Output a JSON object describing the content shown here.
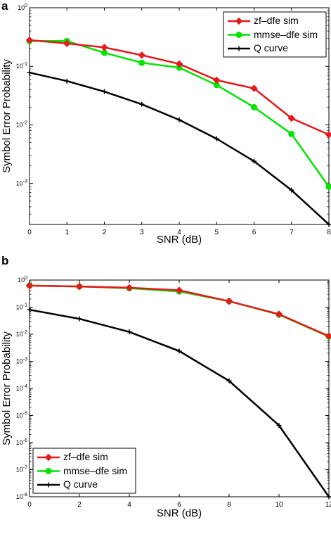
{
  "figure": {
    "panels": [
      {
        "panel_label": "a"
      },
      {
        "panel_label": "b"
      }
    ]
  },
  "chart_data": [
    {
      "type": "line",
      "panel": "a",
      "title": "",
      "xlabel": "SNR (dB)",
      "ylabel": "Symbol Error Probability",
      "xscale": "linear",
      "yscale": "log",
      "xlim": [
        0,
        8
      ],
      "ylim_exp": [
        -3.7,
        0
      ],
      "xticks": [
        0,
        1,
        2,
        3,
        4,
        5,
        6,
        7,
        8
      ],
      "yticks": [
        {
          "exp": 0,
          "base": "10",
          "sup": "0"
        },
        {
          "exp": -1,
          "base": "10",
          "sup": "-1"
        },
        {
          "exp": -2,
          "base": "10",
          "sup": "-2"
        },
        {
          "exp": -3,
          "base": "10",
          "sup": "-3"
        }
      ],
      "grid": false,
      "legend_position": "top-right",
      "series": [
        {
          "name": "zf–dfe sim",
          "color": "#e41a1c",
          "marker": "diamond",
          "x": [
            0,
            1,
            2,
            3,
            4,
            5,
            6,
            7,
            8
          ],
          "y": [
            0.28,
            0.245,
            0.21,
            0.155,
            0.11,
            0.058,
            0.042,
            0.013,
            0.0068
          ]
        },
        {
          "name": "mmse–dfe sim",
          "color": "#00e400",
          "marker": "circle",
          "x": [
            0,
            1,
            2,
            3,
            4,
            5,
            6,
            7,
            8
          ],
          "y": [
            0.27,
            0.27,
            0.17,
            0.115,
            0.095,
            0.048,
            0.02,
            0.007,
            0.00088
          ]
        },
        {
          "name": "Q curve",
          "color": "#000000",
          "marker": "plus",
          "x": [
            0,
            1,
            2,
            3,
            4,
            5,
            6,
            7,
            8
          ],
          "y": [
            0.078,
            0.056,
            0.037,
            0.0225,
            0.0122,
            0.0058,
            0.0024,
            0.00077,
            0.0002
          ]
        }
      ]
    },
    {
      "type": "line",
      "panel": "b",
      "title": "",
      "xlabel": "SNR (dB)",
      "ylabel": "Symbol Error Probability",
      "xscale": "linear",
      "yscale": "log",
      "xlim": [
        0,
        12
      ],
      "ylim_exp": [
        -8,
        0
      ],
      "xticks": [
        0,
        2,
        4,
        6,
        8,
        10,
        12
      ],
      "yticks": [
        {
          "exp": 0,
          "base": "10",
          "sup": "0"
        },
        {
          "exp": -1,
          "base": "10",
          "sup": "-1"
        },
        {
          "exp": -2,
          "base": "10",
          "sup": "-2"
        },
        {
          "exp": -3,
          "base": "10",
          "sup": "-3"
        },
        {
          "exp": -4,
          "base": "10",
          "sup": "-4"
        },
        {
          "exp": -5,
          "base": "10",
          "sup": "-5"
        },
        {
          "exp": -6,
          "base": "10",
          "sup": "-6"
        },
        {
          "exp": -7,
          "base": "10",
          "sup": "-7"
        },
        {
          "exp": -8,
          "base": "10",
          "sup": "-8"
        }
      ],
      "grid": false,
      "legend_position": "bottom-left",
      "series": [
        {
          "name": "zf–dfe sim",
          "color": "#e41a1c",
          "marker": "diamond",
          "x": [
            0,
            2,
            4,
            6,
            8,
            10,
            12
          ],
          "y": [
            0.62,
            0.58,
            0.52,
            0.42,
            0.165,
            0.055,
            0.0085
          ]
        },
        {
          "name": "mmse–dfe sim",
          "color": "#00e400",
          "marker": "circle",
          "x": [
            0,
            2,
            4,
            6,
            8,
            10,
            12
          ],
          "y": [
            0.63,
            0.58,
            0.5,
            0.38,
            0.165,
            0.053,
            0.0082
          ]
        },
        {
          "name": "Q curve",
          "color": "#000000",
          "marker": "plus",
          "x": [
            0,
            2,
            4,
            6,
            8,
            10,
            12
          ],
          "y": [
            0.08,
            0.037,
            0.0122,
            0.0024,
            0.00019,
            4.3e-06,
            1e-08
          ]
        }
      ]
    }
  ]
}
